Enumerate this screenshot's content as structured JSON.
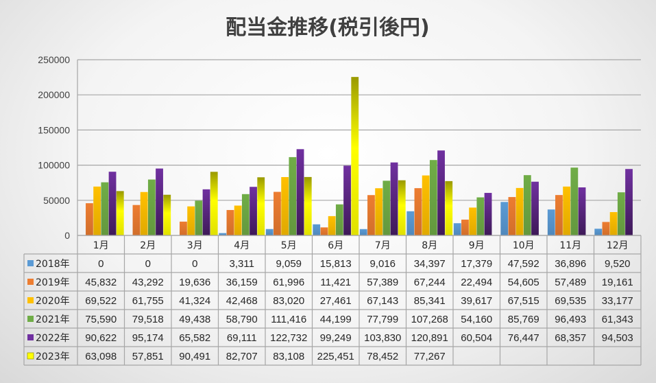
{
  "chart_data": {
    "type": "bar",
    "title": "配当金推移(税引後円)",
    "categories": [
      "1月",
      "2月",
      "3月",
      "4月",
      "5月",
      "6月",
      "7月",
      "8月",
      "9月",
      "10月",
      "11月",
      "12月"
    ],
    "ylim": [
      0,
      250000
    ],
    "yticks": [
      "0",
      "50000",
      "100000",
      "150000",
      "200000",
      "250000"
    ],
    "grid": true,
    "legend": "data-table",
    "series": [
      {
        "name": "2018年",
        "color": "#5b9bd5",
        "values": [
          0,
          0,
          0,
          3311,
          9059,
          15813,
          9016,
          34397,
          17379,
          47592,
          36896,
          9520
        ],
        "labels": [
          "0",
          "0",
          "0",
          "3,311",
          "9,059",
          "15,813",
          "9,016",
          "34,397",
          "17,379",
          "47,592",
          "36,896",
          "9,520"
        ]
      },
      {
        "name": "2019年",
        "color": "#ed7d31",
        "values": [
          45832,
          43292,
          19636,
          36159,
          61996,
          11421,
          57389,
          67244,
          22494,
          54605,
          57489,
          19161
        ],
        "labels": [
          "45,832",
          "43,292",
          "19,636",
          "36,159",
          "61,996",
          "11,421",
          "57,389",
          "67,244",
          "22,494",
          "54,605",
          "57,489",
          "19,161"
        ]
      },
      {
        "name": "2020年",
        "color": "#ffc000",
        "values": [
          69522,
          61755,
          41324,
          42468,
          83020,
          27461,
          67143,
          85341,
          39617,
          67515,
          69535,
          33177
        ],
        "labels": [
          "69,522",
          "61,755",
          "41,324",
          "42,468",
          "83,020",
          "27,461",
          "67,143",
          "85,341",
          "39,617",
          "67,515",
          "69,535",
          "33,177"
        ]
      },
      {
        "name": "2021年",
        "color": "#70ad47",
        "values": [
          75590,
          79518,
          49438,
          58790,
          111416,
          44199,
          77799,
          107268,
          54160,
          85769,
          96493,
          61343
        ],
        "labels": [
          "75,590",
          "79,518",
          "49,438",
          "58,790",
          "111,416",
          "44,199",
          "77,799",
          "107,268",
          "54,160",
          "85,769",
          "96,493",
          "61,343"
        ]
      },
      {
        "name": "2022年",
        "color": "#7030a0",
        "values": [
          90622,
          95174,
          65582,
          69111,
          122732,
          99249,
          103830,
          120891,
          60504,
          76447,
          68357,
          94503
        ],
        "labels": [
          "90,622",
          "95,174",
          "65,582",
          "69,111",
          "122,732",
          "99,249",
          "103,830",
          "120,891",
          "60,504",
          "76,447",
          "68,357",
          "94,503"
        ]
      },
      {
        "name": "2023年",
        "color": "#ffff00",
        "values": [
          63098,
          57851,
          90491,
          82707,
          83108,
          225451,
          78452,
          77267,
          null,
          null,
          null,
          null
        ],
        "labels": [
          "63,098",
          "57,851",
          "90,491",
          "82,707",
          "83,108",
          "225,451",
          "78,452",
          "77,267",
          "",
          "",
          "",
          ""
        ]
      }
    ]
  }
}
